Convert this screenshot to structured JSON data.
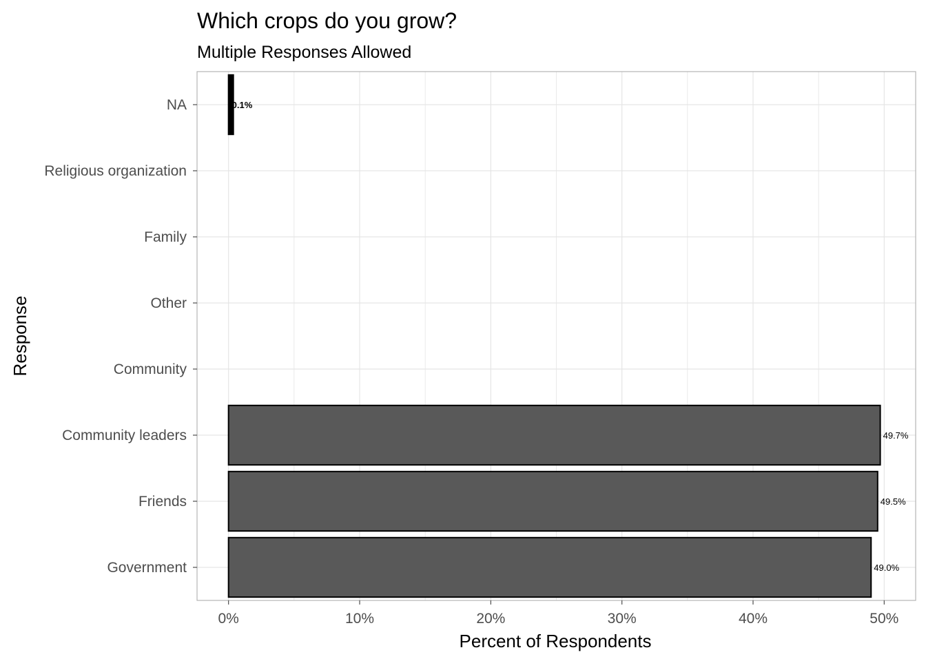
{
  "chart_data": {
    "type": "bar",
    "orientation": "horizontal",
    "title": "Which crops do you grow?",
    "subtitle": "Multiple Responses Allowed",
    "xlabel": "Percent of Respondents",
    "ylabel": "Response",
    "categories": [
      "Government",
      "Friends",
      "Community leaders",
      "Community",
      "Other",
      "Family",
      "Religious organization",
      "NA"
    ],
    "values": [
      49.0,
      49.5,
      49.7,
      null,
      null,
      null,
      null,
      0.1
    ],
    "data_labels": [
      "49.0%",
      "49.5%",
      "49.7%",
      "",
      "",
      "",
      "",
      "0.1%"
    ],
    "xlim": [
      -2.4,
      52.4
    ],
    "x_ticks": [
      0,
      10,
      20,
      30,
      40,
      50
    ],
    "x_tick_labels": [
      "0%",
      "10%",
      "20%",
      "30%",
      "40%",
      "50%"
    ],
    "grid": true,
    "bar_fill": "#595959",
    "bar_outline": "#000000",
    "na_bar_fill": "#000000",
    "panel_border_color": "#b3b3b3",
    "grid_color": "#e5e5e5"
  }
}
